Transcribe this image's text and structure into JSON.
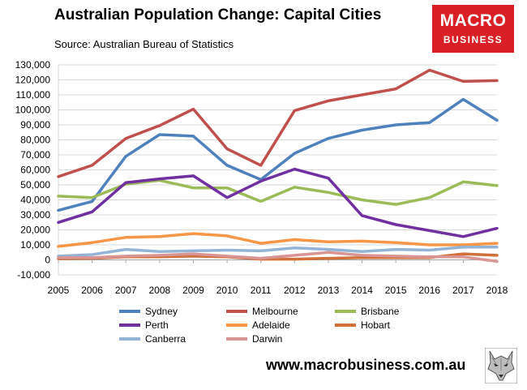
{
  "header": {
    "title": "Australian Population Change: Capital Cities",
    "source": "Source: Australian Bureau of Statistics"
  },
  "logo": {
    "line1": "MACRO",
    "line2": "BUSINESS"
  },
  "footer": {
    "website": "www.macrobusiness.com.au",
    "icon": "wolf-icon"
  },
  "chart_data": {
    "type": "line",
    "title": "Australian Population Change: Capital Cities",
    "x": [
      2005,
      2006,
      2007,
      2008,
      2009,
      2010,
      2011,
      2012,
      2013,
      2014,
      2015,
      2016,
      2017,
      2018
    ],
    "ylim": [
      -10000,
      130000
    ],
    "yticks": [
      -10000,
      0,
      10000,
      20000,
      30000,
      40000,
      50000,
      60000,
      70000,
      80000,
      90000,
      100000,
      110000,
      120000,
      130000
    ],
    "yticklabels": [
      "-10,000",
      "0",
      "10,000",
      "20,000",
      "30,000",
      "40,000",
      "50,000",
      "60,000",
      "70,000",
      "80,000",
      "90,000",
      "100,000",
      "110,000",
      "120,000",
      "130,000"
    ],
    "grid": true,
    "legend": "bottom",
    "series": [
      {
        "name": "Sydney",
        "color": "#4f81bd",
        "values": [
          33000,
          39000,
          69000,
          83500,
          82500,
          63000,
          53500,
          71000,
          81000,
          86500,
          90000,
          91500,
          107000,
          93000
        ]
      },
      {
        "name": "Melbourne",
        "color": "#c0504d",
        "values": [
          55500,
          63000,
          81000,
          89500,
          100500,
          74000,
          63000,
          99500,
          106000,
          110000,
          114000,
          126500,
          119000,
          119500
        ]
      },
      {
        "name": "Brisbane",
        "color": "#9bbb59",
        "values": [
          42500,
          41500,
          50500,
          53000,
          48000,
          48000,
          39000,
          48500,
          45000,
          40000,
          37000,
          41500,
          52000,
          49500
        ]
      },
      {
        "name": "Perth",
        "color": "#7030a0",
        "values": [
          25000,
          32000,
          51500,
          54000,
          56000,
          41500,
          52500,
          60500,
          54500,
          29500,
          23500,
          19500,
          15500,
          21000
        ]
      },
      {
        "name": "Adelaide",
        "color": "#f79646",
        "values": [
          9000,
          11500,
          15000,
          15500,
          17500,
          16000,
          11000,
          13500,
          12000,
          12500,
          11500,
          10000,
          10000,
          11000
        ]
      },
      {
        "name": "Hobart",
        "color": "#d2703a",
        "values": [
          800,
          1000,
          2000,
          2000,
          2500,
          2000,
          500,
          500,
          1000,
          1500,
          1500,
          1500,
          4000,
          3000
        ]
      },
      {
        "name": "Canberra",
        "color": "#95b3d7",
        "values": [
          2500,
          3500,
          7000,
          5500,
          6000,
          6500,
          6000,
          8000,
          7000,
          5500,
          7000,
          6500,
          8500,
          8500
        ]
      },
      {
        "name": "Darwin",
        "color": "#d99594",
        "values": [
          1500,
          1500,
          2500,
          3000,
          4000,
          2500,
          1000,
          3000,
          5000,
          3000,
          2500,
          2000,
          2000,
          -1000
        ]
      }
    ]
  }
}
